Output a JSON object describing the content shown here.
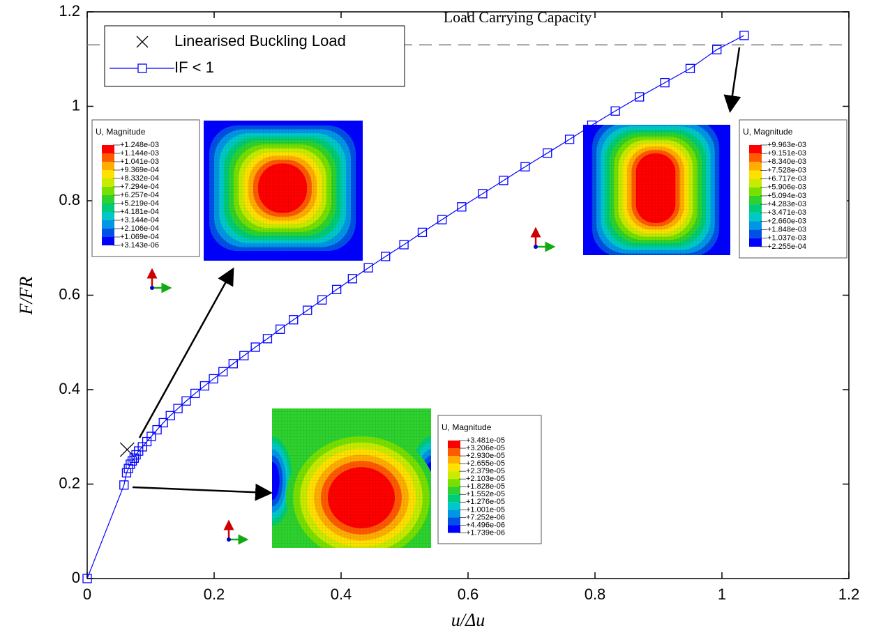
{
  "chart_data": {
    "type": "line",
    "xlabel": "u/Δu",
    "ylabel": "F/FR",
    "xlim": [
      0,
      1.2
    ],
    "ylim": [
      0,
      1.2
    ],
    "xticks": [
      0,
      0.2,
      0.4,
      0.6,
      0.8,
      1,
      1.2
    ],
    "yticks": [
      0,
      0.2,
      0.4,
      0.6,
      0.8,
      1,
      1.2
    ],
    "legend": "upper left",
    "series": [
      {
        "name": "Linearised Buckling Load",
        "color": "#000000",
        "marker": "x",
        "x": [
          0.063
        ],
        "values": [
          0.273
        ]
      },
      {
        "name": "IF < 1",
        "color": "#0000ff",
        "marker": "square",
        "x": [
          0,
          0.058,
          0.062,
          0.065,
          0.068,
          0.071,
          0.074,
          0.077,
          0.081,
          0.087,
          0.094,
          0.101,
          0.11,
          0.12,
          0.131,
          0.143,
          0.156,
          0.17,
          0.185,
          0.199,
          0.214,
          0.23,
          0.247,
          0.265,
          0.284,
          0.304,
          0.325,
          0.347,
          0.37,
          0.393,
          0.418,
          0.443,
          0.47,
          0.499,
          0.528,
          0.559,
          0.59,
          0.623,
          0.656,
          0.69,
          0.725,
          0.76,
          0.795,
          0.832,
          0.87,
          0.91,
          0.95,
          0.992,
          1.035
        ],
        "values": [
          0,
          0.198,
          0.224,
          0.233,
          0.242,
          0.249,
          0.255,
          0.262,
          0.27,
          0.279,
          0.29,
          0.301,
          0.315,
          0.33,
          0.345,
          0.36,
          0.376,
          0.392,
          0.408,
          0.423,
          0.438,
          0.455,
          0.472,
          0.49,
          0.508,
          0.528,
          0.548,
          0.568,
          0.59,
          0.612,
          0.635,
          0.658,
          0.682,
          0.707,
          0.733,
          0.76,
          0.787,
          0.815,
          0.843,
          0.872,
          0.901,
          0.93,
          0.96,
          0.99,
          1.02,
          1.05,
          1.08,
          1.12,
          1.15
        ]
      }
    ],
    "reference_line": {
      "value": 1.13,
      "label": "Load Carrying Capacity"
    },
    "insets": [
      {
        "legend_title": "U, Magnitude",
        "levels": [
          "+1.248e-03",
          "+1.144e-03",
          "+1.041e-03",
          "+9.369e-04",
          "+8.332e-04",
          "+7.294e-04",
          "+6.257e-04",
          "+5.219e-04",
          "+4.181e-04",
          "+3.144e-04",
          "+2.106e-04",
          "+1.069e-04",
          "+3.143e-06"
        ]
      },
      {
        "legend_title": "U, Magnitude",
        "levels": [
          "+9.963e-03",
          "+9.151e-03",
          "+8.340e-03",
          "+7.528e-03",
          "+6.717e-03",
          "+5.906e-03",
          "+5.094e-03",
          "+4.283e-03",
          "+3.471e-03",
          "+2.660e-03",
          "+1.848e-03",
          "+1.037e-03",
          "+2.255e-04"
        ]
      },
      {
        "legend_title": "U, Magnitude",
        "levels": [
          "+3.481e-05",
          "+3.206e-05",
          "+2.930e-05",
          "+2.655e-05",
          "+2.379e-05",
          "+2.103e-05",
          "+1.828e-05",
          "+1.552e-05",
          "+1.276e-05",
          "+1.001e-05",
          "+7.252e-06",
          "+4.496e-06",
          "+1.739e-06"
        ]
      }
    ]
  }
}
